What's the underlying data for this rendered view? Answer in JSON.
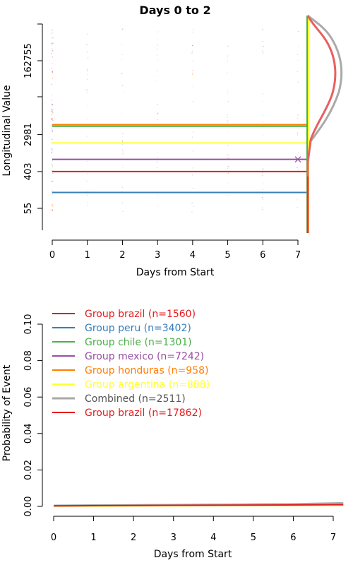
{
  "chart_data": [
    {
      "type": "line",
      "title": "Days 0 to 2",
      "xlabel": "Days from Start",
      "ylabel": "Longitudinal Value",
      "x_ticks": [
        0,
        1,
        2,
        3,
        4,
        5,
        6,
        7
      ],
      "y_ticks": [
        {
          "label": "55",
          "value": 55
        },
        {
          "label": "403",
          "value": 403
        },
        {
          "label": "2981",
          "value": 2981
        },
        {
          "label": "162755",
          "value": 162755
        }
      ],
      "y_scale": "log",
      "xlim": [
        -0.3,
        7.25
      ],
      "series": [
        {
          "color": "#e41a1c",
          "values": [
            [
              0,
              403
            ],
            [
              7.25,
              403
            ]
          ]
        },
        {
          "color": "#377eb8",
          "values": [
            [
              0,
              130
            ],
            [
              7.25,
              130
            ]
          ]
        },
        {
          "color": "#4daf4a",
          "values": [
            [
              0,
              4700
            ],
            [
              7.25,
              4700
            ]
          ]
        },
        {
          "color": "#984ea3",
          "values": [
            [
              0,
              780
            ],
            [
              7.25,
              780
            ]
          ]
        },
        {
          "color": "#ff7f00",
          "values": [
            [
              0,
              5100
            ],
            [
              7.25,
              5100
            ]
          ]
        },
        {
          "color": "#ffff33",
          "values": [
            [
              0,
              1900
            ],
            [
              7.25,
              1900
            ]
          ]
        }
      ],
      "markers": [
        {
          "x": 7,
          "y": 780,
          "symbol": "x",
          "color": "#984ea3"
        }
      ],
      "side_density": true,
      "grid": false
    },
    {
      "type": "line",
      "xlabel": "Days from Start",
      "ylabel": "Probability of Event",
      "x_ticks": [
        0,
        1,
        2,
        3,
        4,
        5,
        6,
        7
      ],
      "y_ticks": [
        "0.00",
        "0.02",
        "0.04",
        "0.06",
        "0.08",
        "0.10"
      ],
      "ylim": [
        0,
        0.1
      ],
      "xlim": [
        0,
        7.25
      ],
      "legend_position": "top-left",
      "series": [
        {
          "name": "Group brazil (n=1560)",
          "color": "#e41a1c",
          "x": [
            0,
            7.25
          ],
          "y": [
            0.0005,
            0.0015
          ]
        },
        {
          "name": "Group peru (n=3402)",
          "color": "#377eb8",
          "x": [
            0,
            7.25
          ],
          "y": [
            0.0004,
            0.001
          ]
        },
        {
          "name": "Group chile (n=1301)",
          "color": "#4daf4a",
          "x": [
            0,
            7.25
          ],
          "y": [
            0.0005,
            0.0012
          ]
        },
        {
          "name": "Group mexico (n=7242)",
          "color": "#984ea3",
          "x": [
            0,
            7.25
          ],
          "y": [
            0.0006,
            0.0008
          ]
        },
        {
          "name": "Group honduras (n=958)",
          "color": "#ff7f00",
          "x": [
            0,
            7.25
          ],
          "y": [
            0.0002,
            0.0012
          ]
        },
        {
          "name": "Group argentina (n=888)",
          "color": "#ffff33",
          "x": [
            0,
            7.25
          ],
          "y": [
            0.0001,
            0.0006
          ]
        },
        {
          "name": "Combined (n=2511)",
          "color": "#aaaaaa",
          "x": [
            0,
            6,
            7.25
          ],
          "y": [
            0.0004,
            0.0012,
            0.0018
          ]
        },
        {
          "name": "Group brazil (n=17862)",
          "color": "#e41a1c",
          "x": [
            0,
            7.25
          ],
          "y": [
            0.0003,
            0.0009
          ]
        }
      ]
    }
  ]
}
